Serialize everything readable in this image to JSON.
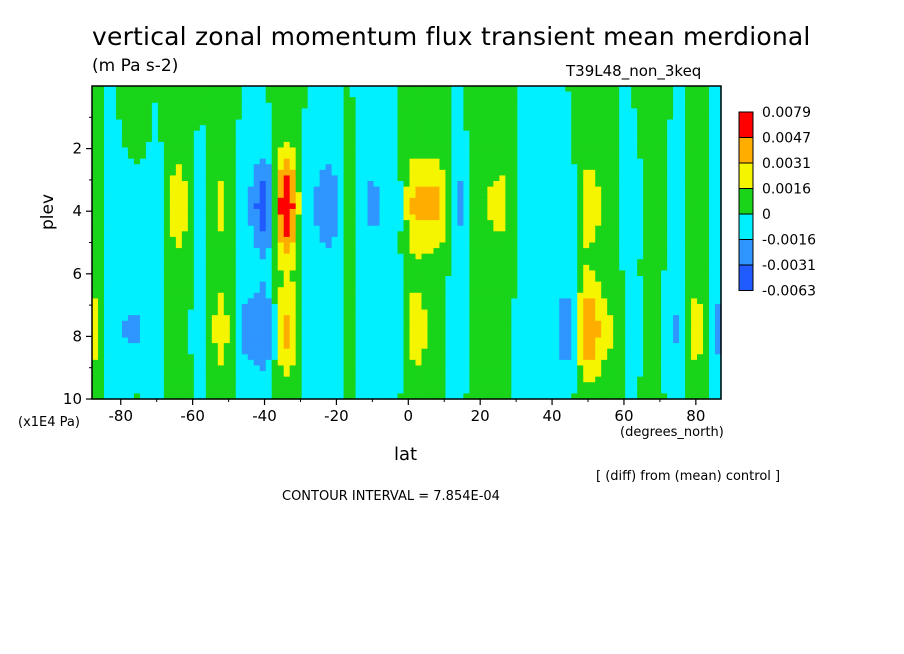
{
  "title": "vertical zonal momentum flux transient mean merdional",
  "units": "(m Pa s-2)",
  "run_label": "T39L48_non_3keq",
  "xlabel": "lat",
  "ylabel": "plev",
  "x_units": "(degrees_north)",
  "y_units": "(x1E4 Pa)",
  "diff_note": "[ (diff) from (mean) control ]",
  "contour_interval": "CONTOUR INTERVAL = 7.854E-04",
  "colors": {
    "level_m3": "#1f5bff",
    "level_m2": "#2f95ff",
    "level_m1": "#00f0ff",
    "level_0": "#19d419",
    "level_1": "#f5f500",
    "level_2": "#ffae00",
    "level_3": "#ff0000"
  },
  "chart_data": {
    "type": "heatmap",
    "x_ticks": [
      -80,
      -60,
      -40,
      -20,
      0,
      20,
      40,
      60,
      80
    ],
    "y_ticks": [
      2,
      4,
      6,
      8,
      10
    ],
    "xlim": [
      -88,
      87
    ],
    "ylim": [
      10,
      0
    ],
    "legend_placement": "right",
    "colorbar_labels": [
      "0.0079",
      "0.0047",
      "0.0031",
      "0.0016",
      "0",
      "-0.0016",
      "-0.0031",
      "-0.0063"
    ],
    "lats": [
      -88,
      -82,
      -76,
      -70,
      -64,
      -58,
      -52,
      -46,
      -40,
      -34,
      -28,
      -22,
      -16,
      -10,
      -4,
      2,
      8,
      14,
      20,
      26,
      32,
      38,
      44,
      50,
      56,
      62,
      68,
      74,
      80,
      86
    ],
    "profiles": [
      {
        "lat": -88,
        "a": 0.0,
        "u": 0.001,
        "l": 0.0025
      },
      {
        "lat": -82,
        "a": 0.0,
        "u": -0.001,
        "l": -0.0015
      },
      {
        "lat": -76,
        "a": 0.0004,
        "u": -0.0008,
        "l": -0.0022
      },
      {
        "lat": -70,
        "a": 0.0,
        "u": -0.0005,
        "l": -0.001
      },
      {
        "lat": -64,
        "a": 0.0006,
        "u": 0.002,
        "l": 0.0006
      },
      {
        "lat": -58,
        "a": 0.0,
        "u": -0.0004,
        "l": -0.0008
      },
      {
        "lat": -52,
        "a": 0.0004,
        "u": 0.0015,
        "l": 0.002
      },
      {
        "lat": -46,
        "a": 0.0,
        "u": -0.001,
        "l": -0.002
      },
      {
        "lat": -40,
        "a": 0.0,
        "u": -0.004,
        "l": -0.003
      },
      {
        "lat": -34,
        "a": 0.0004,
        "u": 0.006,
        "l": 0.003
      },
      {
        "lat": -28,
        "a": 0.0,
        "u": -0.0012,
        "l": -0.0008
      },
      {
        "lat": -22,
        "a": 0.0,
        "u": -0.003,
        "l": -0.001
      },
      {
        "lat": -16,
        "a": 0.0,
        "u": 0.0008,
        "l": 0.0004
      },
      {
        "lat": -10,
        "a": -0.0004,
        "u": -0.0015,
        "l": -0.0008
      },
      {
        "lat": -4,
        "a": 0.0,
        "u": -0.001,
        "l": -0.0012
      },
      {
        "lat": 2,
        "a": 0.0004,
        "u": 0.003,
        "l": 0.002
      },
      {
        "lat": 8,
        "a": 0.0,
        "u": 0.0035,
        "l": 0.0008
      },
      {
        "lat": 14,
        "a": 0.0,
        "u": -0.002,
        "l": -0.0012
      },
      {
        "lat": 20,
        "a": 0.0004,
        "u": 0.001,
        "l": 0.0006
      },
      {
        "lat": 26,
        "a": 0.0,
        "u": 0.0022,
        "l": 0.0008
      },
      {
        "lat": 32,
        "a": 0.0,
        "u": -0.001,
        "l": -0.0005
      },
      {
        "lat": 38,
        "a": -0.0002,
        "u": -0.0006,
        "l": -0.0003
      },
      {
        "lat": 44,
        "a": 0.0,
        "u": -0.0012,
        "l": -0.0025
      },
      {
        "lat": 50,
        "a": 0.0004,
        "u": 0.002,
        "l": 0.004
      },
      {
        "lat": 56,
        "a": 0.0,
        "u": 0.001,
        "l": 0.0018
      },
      {
        "lat": 62,
        "a": 0.0,
        "u": -0.001,
        "l": -0.0008
      },
      {
        "lat": 68,
        "a": 0.0004,
        "u": 0.0008,
        "l": 0.0004
      },
      {
        "lat": 74,
        "a": 0.0,
        "u": -0.0008,
        "l": -0.0018
      },
      {
        "lat": 80,
        "a": 0.0,
        "u": 0.0005,
        "l": 0.0025
      },
      {
        "lat": 86,
        "a": 0.0,
        "u": -0.0005,
        "l": -0.002
      }
    ]
  }
}
